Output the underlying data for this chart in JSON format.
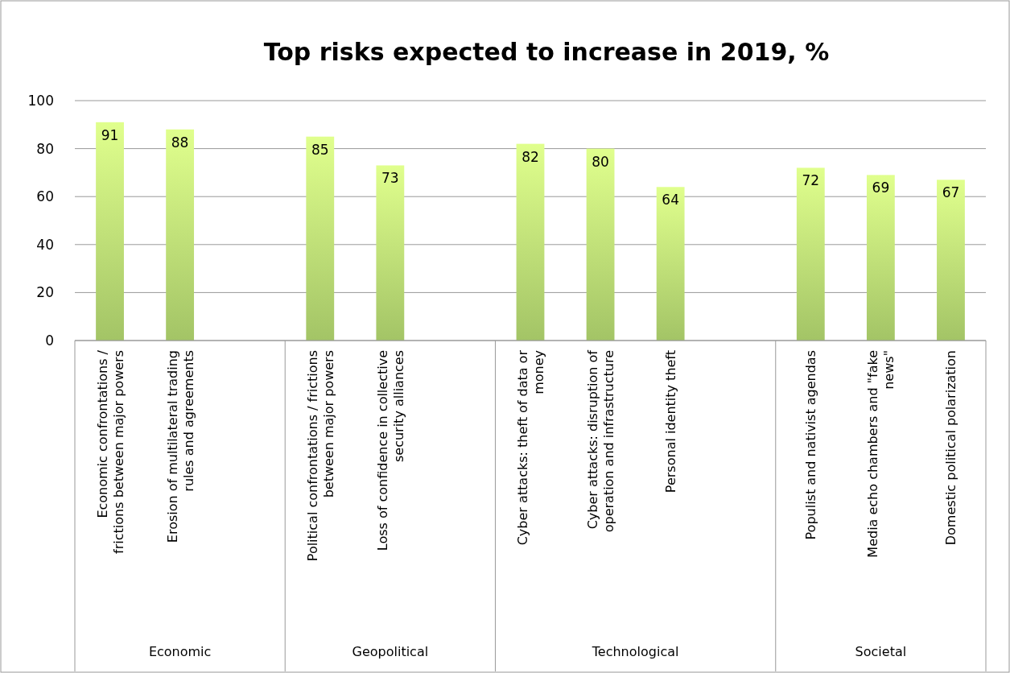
{
  "chart_data": {
    "type": "bar",
    "title": "Top risks expected to increase in 2019, %",
    "categories": [
      "Economic confrontations / frictions between major powers",
      "Erosion of multilateral trading rules and agreements",
      null,
      "Political confrontations / frictions between major powers",
      "Loss of confidence in collective security alliances",
      null,
      "Cyber attacks: theft of data or money",
      "Cyber attacks: disruption of operation and infrastructure",
      "Personal identity theft",
      null,
      "Populist and nativist agendas",
      "Media echo chambers and \"fake news\"",
      "Domestic political polarization"
    ],
    "values": [
      91,
      88,
      null,
      85,
      73,
      null,
      82,
      80,
      64,
      null,
      72,
      69,
      67
    ],
    "color": "#b5da72",
    "ylim": [
      0,
      100
    ],
    "yticks": [
      0,
      20,
      40,
      60,
      80,
      100
    ],
    "grid": "y",
    "data_labels": true,
    "annotations": [
      "Economic",
      "Geopolitical",
      "Technological",
      "Societal"
    ]
  }
}
